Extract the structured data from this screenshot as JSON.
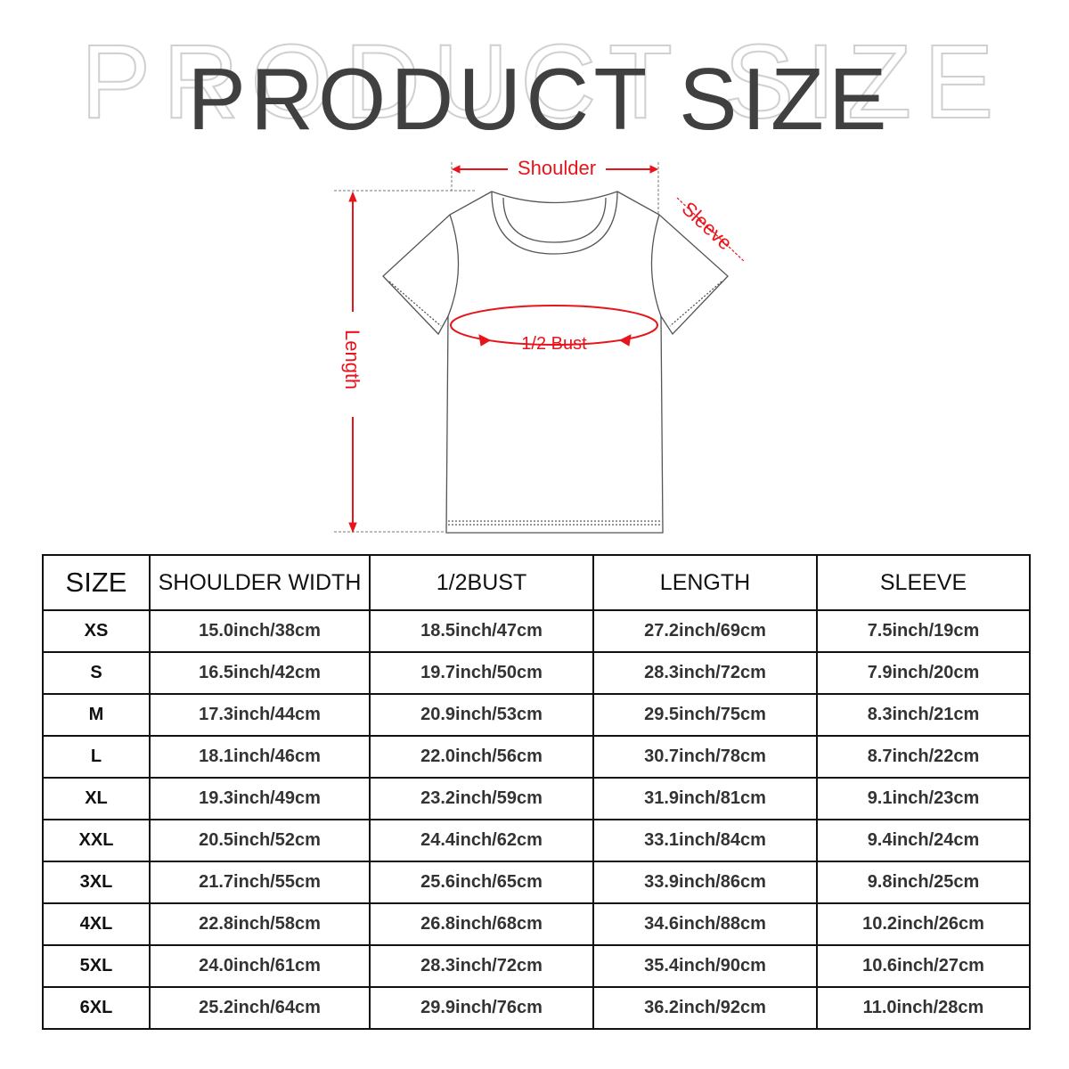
{
  "title": "PRODUCT SIZE",
  "title_shadow": "PRODUCT SIZE",
  "diagram": {
    "labels": {
      "shoulder": "Shoulder",
      "sleeve": "Sleeve",
      "bust": "1/2 Bust",
      "length": "Length"
    },
    "accent_color": "#e8141b"
  },
  "table": {
    "headers": [
      "SIZE",
      "SHOULDER WIDTH",
      "1/2BUST",
      "LENGTH",
      "SLEEVE"
    ],
    "rows": [
      [
        "XS",
        "15.0inch/38cm",
        "18.5inch/47cm",
        "27.2inch/69cm",
        "7.5inch/19cm"
      ],
      [
        "S",
        "16.5inch/42cm",
        "19.7inch/50cm",
        "28.3inch/72cm",
        "7.9inch/20cm"
      ],
      [
        "M",
        "17.3inch/44cm",
        "20.9inch/53cm",
        "29.5inch/75cm",
        "8.3inch/21cm"
      ],
      [
        "L",
        "18.1inch/46cm",
        "22.0inch/56cm",
        "30.7inch/78cm",
        "8.7inch/22cm"
      ],
      [
        "XL",
        "19.3inch/49cm",
        "23.2inch/59cm",
        "31.9inch/81cm",
        "9.1inch/23cm"
      ],
      [
        "XXL",
        "20.5inch/52cm",
        "24.4inch/62cm",
        "33.1inch/84cm",
        "9.4inch/24cm"
      ],
      [
        "3XL",
        "21.7inch/55cm",
        "25.6inch/65cm",
        "33.9inch/86cm",
        "9.8inch/25cm"
      ],
      [
        "4XL",
        "22.8inch/58cm",
        "26.8inch/68cm",
        "34.6inch/88cm",
        "10.2inch/26cm"
      ],
      [
        "5XL",
        "24.0inch/61cm",
        "28.3inch/72cm",
        "35.4inch/90cm",
        "10.6inch/27cm"
      ],
      [
        "6XL",
        "25.2inch/64cm",
        "29.9inch/76cm",
        "36.2inch/92cm",
        "11.0inch/28cm"
      ]
    ]
  }
}
